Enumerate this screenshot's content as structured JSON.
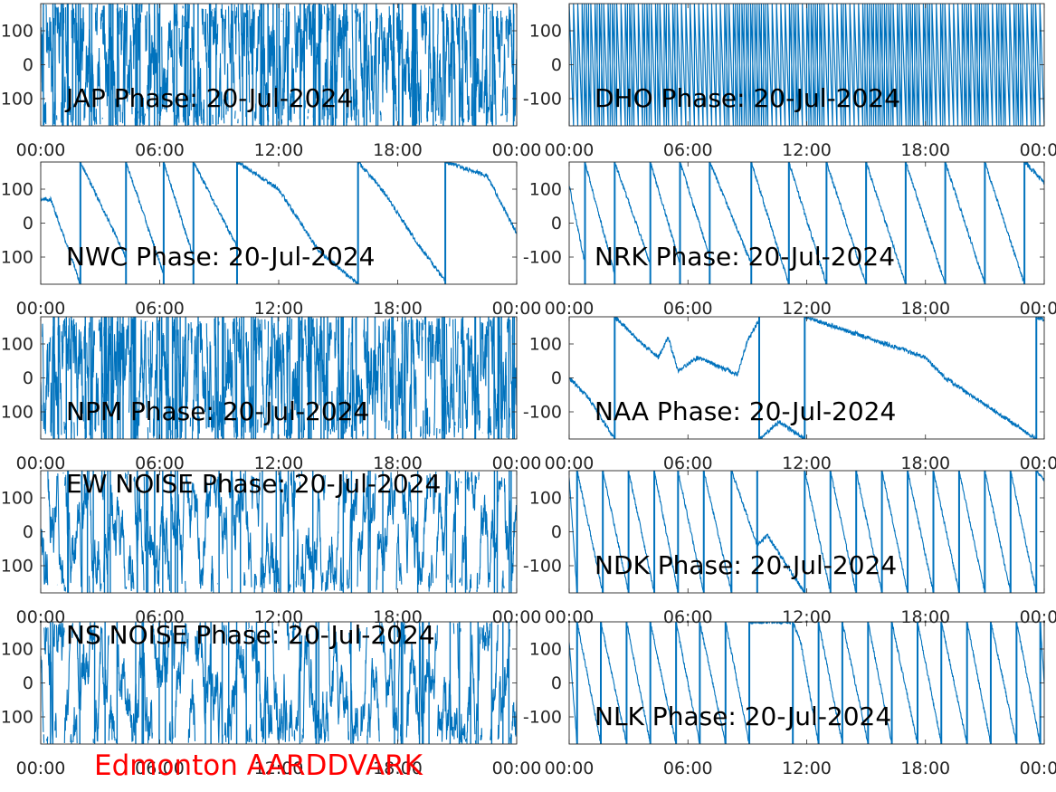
{
  "figure": {
    "footer": "Edmonton AARDDVARK",
    "footer_color": "#ff0000",
    "line_color": "#0072BD"
  },
  "chart_data": [
    {
      "type": "line",
      "title": "JAP Phase: 20-Jul-2024",
      "pattern": "noise_dense",
      "x_ticks": [
        "00:00",
        "06:00",
        "12:00",
        "18:00",
        "00:00"
      ],
      "y_ticks": [
        100,
        0,
        -100
      ],
      "ylim": [
        -180,
        180
      ],
      "grid": false
    },
    {
      "type": "line",
      "title": "DHO Phase: 20-Jul-2024",
      "pattern": "fast_wrap",
      "x_ticks": [
        "00:00",
        "06:00",
        "12:00",
        "18:00",
        "00:00"
      ],
      "y_ticks": [
        100,
        0,
        -100
      ],
      "ylim": [
        -180,
        180
      ],
      "grid": false
    },
    {
      "type": "line",
      "title": "NWC Phase: 20-Jul-2024",
      "pattern": "sawtooth",
      "x_ticks": [
        "00:00",
        "06:00",
        "12:00",
        "18:00",
        "00:00"
      ],
      "y_ticks": [
        100,
        0,
        -100
      ],
      "ylim": [
        -180,
        180
      ],
      "grid": false,
      "wrap_hours": [
        2.0,
        4.3,
        6.2,
        7.7,
        9.9,
        16.0,
        20.4
      ],
      "phase_points": [
        [
          0,
          70
        ],
        [
          0.5,
          70
        ],
        [
          1.3,
          -60
        ],
        [
          2.0,
          -180
        ],
        [
          2.0,
          180
        ],
        [
          4.3,
          -100
        ],
        [
          4.3,
          180
        ],
        [
          6.2,
          -150
        ],
        [
          6.2,
          180
        ],
        [
          7.7,
          -100
        ],
        [
          7.7,
          180
        ],
        [
          9.9,
          -70
        ],
        [
          9.9,
          180
        ],
        [
          12,
          100
        ],
        [
          14,
          -80
        ],
        [
          16.0,
          -180
        ],
        [
          16.0,
          180
        ],
        [
          17.2,
          100
        ],
        [
          18,
          30
        ],
        [
          19,
          -60
        ],
        [
          20.4,
          -170
        ],
        [
          20.4,
          180
        ],
        [
          22.5,
          140
        ],
        [
          24,
          -30
        ]
      ]
    },
    {
      "type": "line",
      "title": "NRK Phase: 20-Jul-2024",
      "pattern": "sawtooth",
      "x_ticks": [
        "00:00",
        "06:00",
        "12:00",
        "18:00",
        "00:00"
      ],
      "y_ticks": [
        100,
        0,
        -100
      ],
      "ylim": [
        -180,
        180
      ],
      "grid": false,
      "wrap_hours": [
        0.8,
        2.3,
        4.1,
        5.6,
        7.1,
        9.2,
        11.1,
        13.0,
        15.0,
        17.0,
        19.0,
        21.0,
        23.0
      ],
      "phase_points": [
        [
          0,
          110
        ],
        [
          0.8,
          -120
        ],
        [
          0.8,
          180
        ],
        [
          2.3,
          -150
        ],
        [
          2.3,
          180
        ],
        [
          4.1,
          -120
        ],
        [
          4.1,
          180
        ],
        [
          5.6,
          -120
        ],
        [
          5.6,
          180
        ],
        [
          7.1,
          -100
        ],
        [
          7.1,
          180
        ],
        [
          9.2,
          -120
        ],
        [
          9.2,
          180
        ],
        [
          11.1,
          -180
        ],
        [
          11.1,
          180
        ],
        [
          13.0,
          -180
        ],
        [
          13.0,
          180
        ],
        [
          15.0,
          -180
        ],
        [
          15.0,
          180
        ],
        [
          17.0,
          -180
        ],
        [
          17.0,
          180
        ],
        [
          19.0,
          -180
        ],
        [
          19.0,
          180
        ],
        [
          21.0,
          -180
        ],
        [
          21.0,
          180
        ],
        [
          23.0,
          -180
        ],
        [
          23.0,
          180
        ],
        [
          24,
          120
        ]
      ]
    },
    {
      "type": "line",
      "title": "NPM Phase: 20-Jul-2024",
      "pattern": "noise_dense",
      "x_ticks": [
        "00:00",
        "06:00",
        "12:00",
        "18:00",
        "00:00"
      ],
      "y_ticks": [
        100,
        0,
        -100
      ],
      "ylim": [
        -180,
        180
      ],
      "grid": false
    },
    {
      "type": "line",
      "title": "NAA Phase: 20-Jul-2024",
      "pattern": "sawtooth",
      "x_ticks": [
        "00:00",
        "06:00",
        "12:00",
        "18:00",
        "00:00"
      ],
      "y_ticks": [
        100,
        0,
        -100
      ],
      "ylim": [
        -180,
        180
      ],
      "grid": false,
      "wrap_hours": [
        2.3,
        9.6,
        11.9,
        23.6
      ],
      "phase_points": [
        [
          0,
          0
        ],
        [
          1.0,
          -60
        ],
        [
          2.3,
          -180
        ],
        [
          2.3,
          180
        ],
        [
          3.5,
          110
        ],
        [
          4.5,
          60
        ],
        [
          5.0,
          120
        ],
        [
          5.5,
          20
        ],
        [
          6.5,
          60
        ],
        [
          8.5,
          10
        ],
        [
          9.0,
          110
        ],
        [
          9.6,
          170
        ],
        [
          9.6,
          -180
        ],
        [
          10.6,
          -130
        ],
        [
          11.9,
          -180
        ],
        [
          11.9,
          180
        ],
        [
          15,
          120
        ],
        [
          18,
          60
        ],
        [
          19,
          0
        ],
        [
          23.6,
          -180
        ],
        [
          23.6,
          180
        ],
        [
          24,
          170
        ]
      ]
    },
    {
      "type": "line",
      "title": "EW NOISE Phase: 20-Jul-2024",
      "pattern": "noise_moderate",
      "x_ticks": [
        "00:00",
        "06:00",
        "12:00",
        "18:00",
        "00:00"
      ],
      "y_ticks": [
        100,
        0,
        -100
      ],
      "ylim": [
        -180,
        180
      ],
      "grid": false
    },
    {
      "type": "line",
      "title": "NDK Phase: 20-Jul-2024",
      "pattern": "sawtooth",
      "x_ticks": [
        "00:00",
        "06:00",
        "12:00",
        "18:00",
        "00:00"
      ],
      "y_ticks": [
        100,
        0,
        -100
      ],
      "ylim": [
        -180,
        180
      ],
      "grid": false,
      "wrap_hours": [
        0.4,
        1.7,
        3.0,
        4.3,
        5.5,
        6.8,
        8.2,
        9.5,
        11.9,
        13.2,
        14.5,
        15.8,
        17.1,
        18.4,
        19.7,
        21.0,
        22.3,
        23.6
      ],
      "phase_points": [
        [
          0,
          160
        ],
        [
          0.4,
          -180
        ],
        [
          0.4,
          180
        ],
        [
          1.7,
          -180
        ],
        [
          1.7,
          180
        ],
        [
          3.0,
          -180
        ],
        [
          3.0,
          180
        ],
        [
          4.3,
          -180
        ],
        [
          4.3,
          180
        ],
        [
          5.5,
          -180
        ],
        [
          5.5,
          180
        ],
        [
          6.8,
          -180
        ],
        [
          6.8,
          180
        ],
        [
          8.2,
          -180
        ],
        [
          8.2,
          180
        ],
        [
          9.5,
          -40
        ],
        [
          10,
          -10
        ],
        [
          11.9,
          -180
        ],
        [
          11.9,
          180
        ],
        [
          13.2,
          -180
        ],
        [
          13.2,
          180
        ],
        [
          14.5,
          -180
        ],
        [
          14.5,
          180
        ],
        [
          15.8,
          -180
        ],
        [
          15.8,
          180
        ],
        [
          17.1,
          -180
        ],
        [
          17.1,
          180
        ],
        [
          18.4,
          -180
        ],
        [
          18.4,
          180
        ],
        [
          19.7,
          -180
        ],
        [
          19.7,
          180
        ],
        [
          21.0,
          -180
        ],
        [
          21.0,
          180
        ],
        [
          22.3,
          -180
        ],
        [
          22.3,
          180
        ],
        [
          23.6,
          -180
        ],
        [
          23.6,
          180
        ],
        [
          24,
          150
        ]
      ]
    },
    {
      "type": "line",
      "title": "NS NOISE Phase: 20-Jul-2024",
      "pattern": "noise_moderate",
      "x_ticks": [
        "00:00",
        "06:00",
        "12:00",
        "18:00",
        "00:00"
      ],
      "y_ticks": [
        100,
        0,
        -100
      ],
      "ylim": [
        -180,
        180
      ],
      "grid": false
    },
    {
      "type": "line",
      "title": "NLK Phase: 20-Jul-2024",
      "pattern": "sawtooth",
      "x_ticks": [
        "00:00",
        "06:00",
        "12:00",
        "18:00",
        "00:00"
      ],
      "y_ticks": [
        100,
        0,
        -100
      ],
      "ylim": [
        -180,
        180
      ],
      "grid": false,
      "wrap_hours": [
        0.4,
        1.6,
        2.9,
        4.1,
        5.4,
        6.6,
        7.9,
        9.1,
        11.3,
        12.6,
        13.8,
        15.1,
        16.3,
        17.6,
        18.8,
        20.1,
        21.3,
        22.6,
        23.8
      ],
      "phase_points": [
        [
          0,
          120
        ],
        [
          0.4,
          -180
        ],
        [
          0.4,
          180
        ],
        [
          1.6,
          -180
        ],
        [
          1.6,
          180
        ],
        [
          2.9,
          -180
        ],
        [
          2.9,
          180
        ],
        [
          4.1,
          -180
        ],
        [
          4.1,
          180
        ],
        [
          5.4,
          -180
        ],
        [
          5.4,
          180
        ],
        [
          6.6,
          -180
        ],
        [
          6.6,
          180
        ],
        [
          7.9,
          -180
        ],
        [
          7.9,
          180
        ],
        [
          9.1,
          -180
        ],
        [
          9.1,
          180
        ],
        [
          11.3,
          180
        ],
        [
          11.7,
          120
        ],
        [
          12.6,
          -180
        ],
        [
          12.6,
          180
        ],
        [
          13.8,
          -180
        ],
        [
          13.8,
          180
        ],
        [
          15.1,
          -180
        ],
        [
          15.1,
          180
        ],
        [
          16.3,
          -180
        ],
        [
          16.3,
          180
        ],
        [
          17.6,
          -180
        ],
        [
          17.6,
          180
        ],
        [
          18.8,
          -180
        ],
        [
          18.8,
          180
        ],
        [
          20.1,
          -180
        ],
        [
          20.1,
          180
        ],
        [
          21.3,
          -180
        ],
        [
          21.3,
          180
        ],
        [
          22.6,
          -180
        ],
        [
          22.6,
          180
        ],
        [
          23.8,
          -180
        ],
        [
          23.8,
          180
        ],
        [
          24,
          0
        ]
      ]
    }
  ]
}
